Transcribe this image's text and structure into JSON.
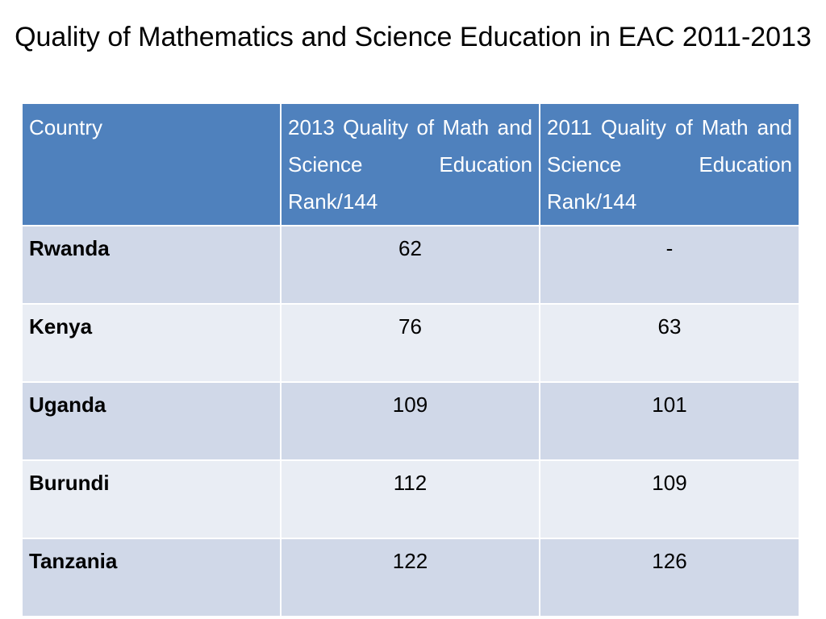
{
  "title": "Quality of Mathematics and Science Education in EAC 2011-2013",
  "table": {
    "headers": [
      "Country",
      "2013 Quality of Math and Science Education Rank/144",
      "2011 Quality of Math and Science Education Rank/144"
    ],
    "rows": [
      {
        "country": "Rwanda",
        "rank_2013": "62",
        "rank_2011": "-"
      },
      {
        "country": "Kenya",
        "rank_2013": "76",
        "rank_2011": "63"
      },
      {
        "country": "Uganda",
        "rank_2013": "109",
        "rank_2011": "101"
      },
      {
        "country": "Burundi",
        "rank_2013": "112",
        "rank_2011": "109"
      },
      {
        "country": "Tanzania",
        "rank_2013": "122",
        "rank_2011": "126"
      }
    ]
  },
  "colors": {
    "header_background": "#4f81bd",
    "row_band_dark": "#d0d8e8",
    "row_band_light": "#e9edf4"
  }
}
